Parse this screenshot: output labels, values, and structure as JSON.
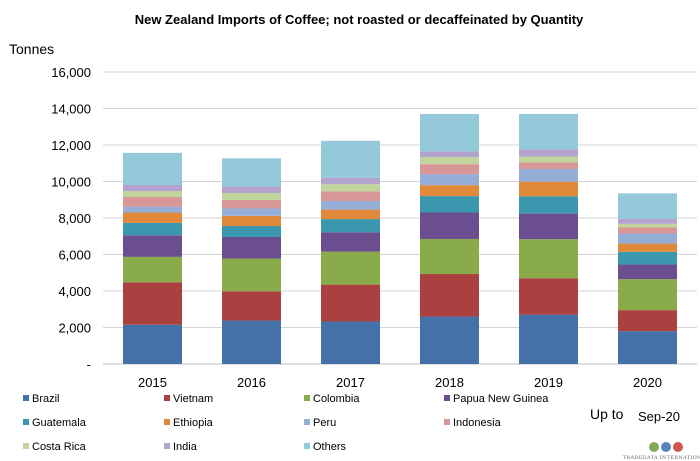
{
  "footnote": {
    "prefix": "Up to",
    "period": "Sep-20"
  },
  "logo": {
    "text": "TRADEDATA INTERNATIONAL",
    "colors": [
      "#6d9a3b",
      "#3c6fb5",
      "#c8372d"
    ]
  },
  "chart_data": {
    "type": "bar",
    "stacked": true,
    "title": "New Zealand Imports of Coffee; not roasted or decaffeinated by Quantity",
    "ylabel": "Tonnes",
    "xlabel": "",
    "ylim": [
      0,
      16000
    ],
    "yticks": [
      0,
      2000,
      4000,
      6000,
      8000,
      10000,
      12000,
      14000,
      16000
    ],
    "ytick_labels": [
      "-",
      "2,000",
      "4,000",
      "6,000",
      "8,000",
      "10,000",
      "12,000",
      "14,000",
      "16,000"
    ],
    "grid": true,
    "legend_position": "bottom",
    "categories": [
      "2015",
      "2016",
      "2017",
      "2018",
      "2019",
      "2020"
    ],
    "series": [
      {
        "name": "Brazil",
        "color": "#4472a8",
        "values": [
          2150,
          2380,
          2330,
          2600,
          2700,
          1800
        ]
      },
      {
        "name": "Vietnam",
        "color": "#ab4040",
        "values": [
          2330,
          1600,
          2020,
          2330,
          2000,
          1150
        ]
      },
      {
        "name": "Colombia",
        "color": "#8aab49",
        "values": [
          1390,
          1800,
          1810,
          1920,
          2140,
          1700
        ]
      },
      {
        "name": "Papua New Guinea",
        "color": "#6b4e8f",
        "values": [
          1180,
          1180,
          1060,
          1450,
          1400,
          800
        ]
      },
      {
        "name": "Guatemala",
        "color": "#3a97ad",
        "values": [
          680,
          600,
          720,
          900,
          950,
          700
        ]
      },
      {
        "name": "Ethiopia",
        "color": "#e0893a",
        "values": [
          570,
          560,
          520,
          600,
          800,
          450
        ]
      },
      {
        "name": "Peru",
        "color": "#94aed8",
        "values": [
          320,
          400,
          470,
          600,
          700,
          550
        ]
      },
      {
        "name": "Indonesia",
        "color": "#d99696",
        "values": [
          530,
          470,
          520,
          550,
          350,
          330
        ]
      },
      {
        "name": "Costa Rica",
        "color": "#c0d49b",
        "values": [
          320,
          380,
          400,
          390,
          320,
          200
        ]
      },
      {
        "name": "India",
        "color": "#b4a3cd",
        "values": [
          340,
          350,
          360,
          310,
          400,
          270
        ]
      },
      {
        "name": "Others",
        "color": "#93c9d9",
        "values": [
          1760,
          1550,
          2020,
          2050,
          1940,
          1400
        ]
      }
    ]
  }
}
